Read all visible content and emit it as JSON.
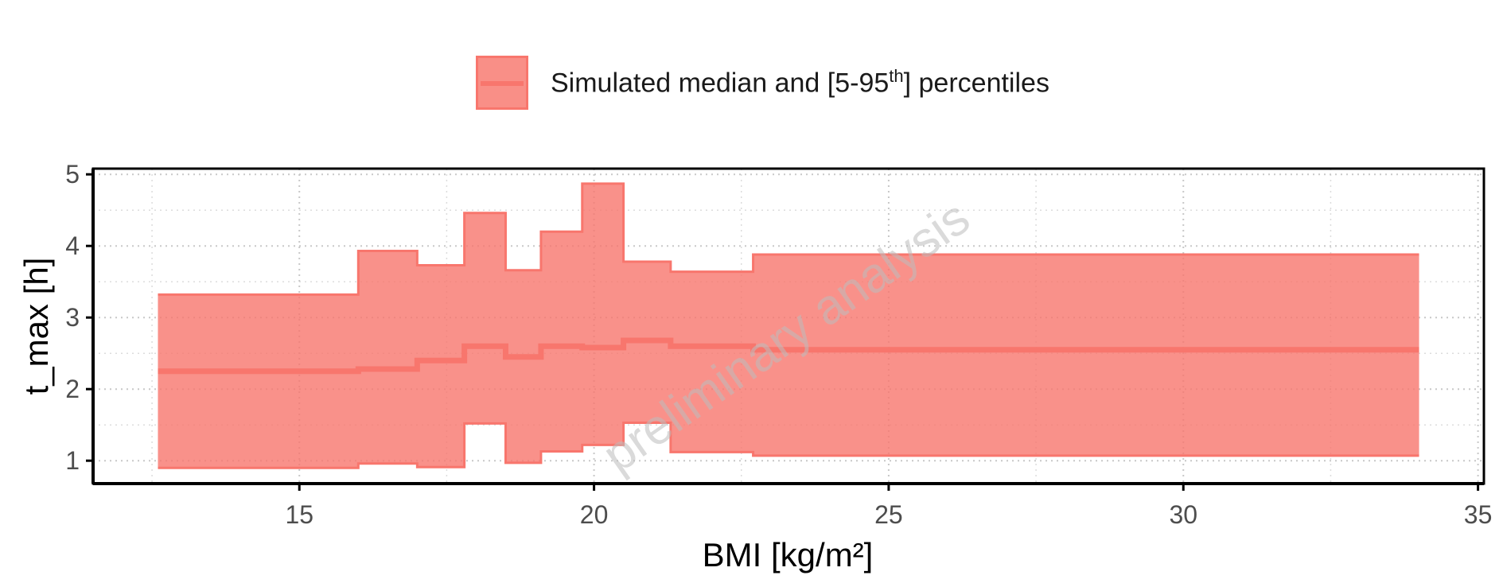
{
  "legend": {
    "label_prefix": "Simulated median and [5-95",
    "label_sup": "th",
    "label_suffix": "] percentiles"
  },
  "watermark": "preliminary analysis",
  "colors": {
    "band": "#f8766d",
    "axis": "#000000",
    "grid": "#c8c8c8"
  },
  "chart_data": {
    "type": "area",
    "xlabel": "BMI [kg/m²]",
    "ylabel": "t_max [h]",
    "xlim": [
      11.5,
      35.1
    ],
    "ylim": [
      0.68,
      5.08
    ],
    "xticks": [
      15,
      20,
      25,
      30,
      35
    ],
    "yticks": [
      1,
      2,
      3,
      4,
      5
    ],
    "grid": true,
    "legend_position": "top",
    "series": [
      {
        "name": "Simulated median and [5-95th] percentiles",
        "step_edges": [
          12.6,
          16.0,
          17.0,
          17.8,
          18.5,
          19.1,
          19.8,
          20.5,
          21.3,
          22.7,
          34.0
        ],
        "median": [
          2.25,
          2.28,
          2.4,
          2.6,
          2.45,
          2.6,
          2.58,
          2.68,
          2.6,
          2.55
        ],
        "p5": [
          0.9,
          0.96,
          0.91,
          1.52,
          0.97,
          1.13,
          1.22,
          1.53,
          1.12,
          1.07
        ],
        "p95": [
          3.32,
          3.93,
          3.73,
          4.46,
          3.66,
          4.2,
          4.87,
          3.78,
          3.64,
          3.88
        ]
      }
    ]
  }
}
